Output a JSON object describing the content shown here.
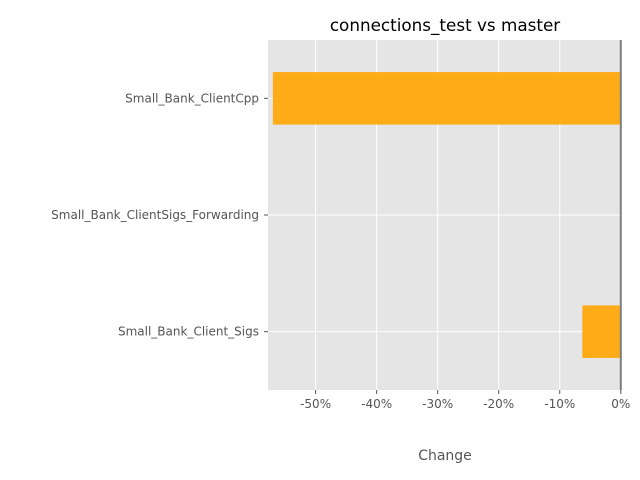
{
  "chart_data": {
    "type": "bar",
    "orientation": "horizontal",
    "title": "connections_test vs master",
    "xlabel": "Change",
    "ylabel": "",
    "categories": [
      "Small_Bank_ClientCpp",
      "Small_Bank_ClientSigs_Forwarding",
      "Small_Bank_Client_Sigs"
    ],
    "values": [
      -57,
      0,
      -6.3
    ],
    "x_ticks": [
      -50,
      -40,
      -30,
      -20,
      -10,
      0
    ],
    "x_tick_labels": [
      "-50%",
      "-40%",
      "-30%",
      "-20%",
      "-10%",
      "0%"
    ],
    "xlim": [
      -57.8,
      0.2
    ],
    "grid": true,
    "bar_color": "#FFA500",
    "background_color": "#E5E5E5",
    "grid_color": "#FFFFFF",
    "zero_line_color": "#808080"
  }
}
